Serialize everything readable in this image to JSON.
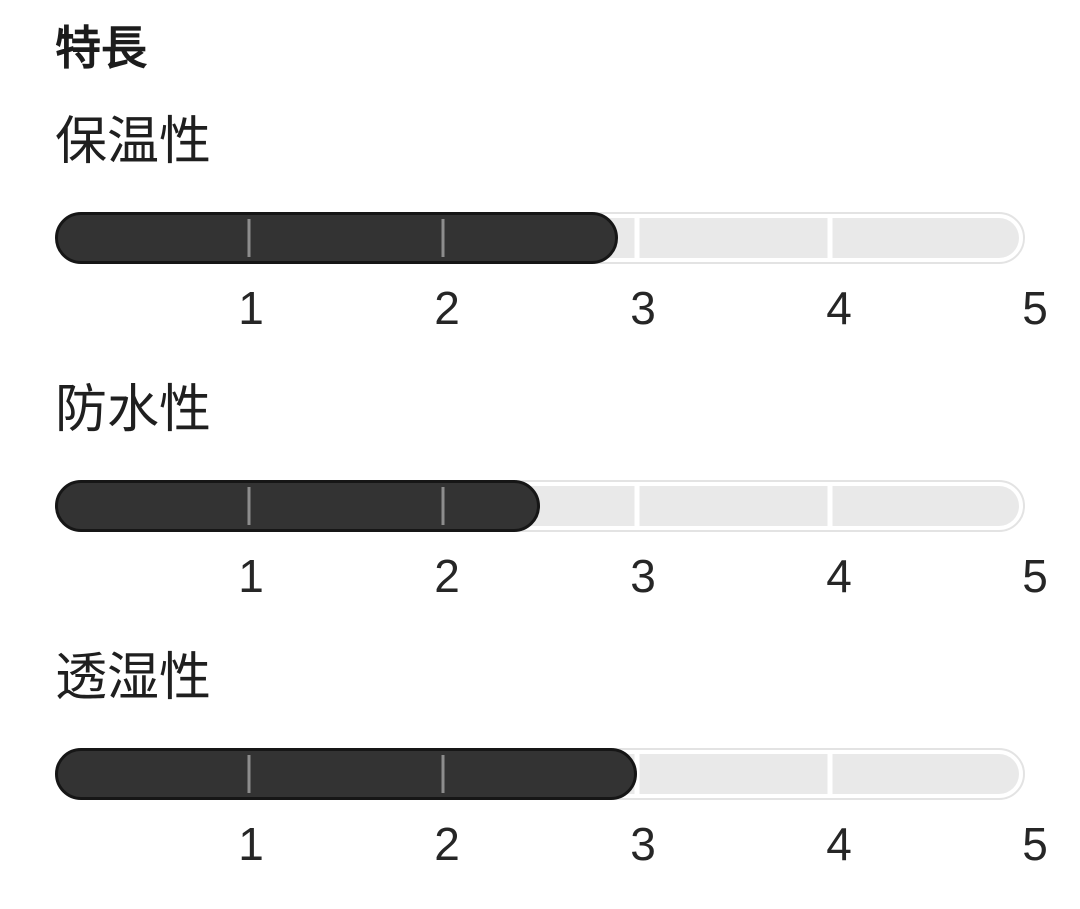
{
  "page": {
    "title": "特長"
  },
  "features": [
    {
      "label": "保温性",
      "value": 2.9
    },
    {
      "label": "防水性",
      "value": 2.5
    },
    {
      "label": "透湿性",
      "value": 3.0
    }
  ],
  "chart_data": {
    "type": "bar",
    "orientation": "horizontal",
    "title": "特長",
    "categories": [
      "保温性",
      "防水性",
      "透湿性"
    ],
    "values": [
      2.9,
      2.5,
      3.0
    ],
    "value_range": [
      0,
      5
    ],
    "tick_labels": [
      "1",
      "2",
      "3",
      "4",
      "5"
    ],
    "grid": "segment dividers at each integer",
    "colors": {
      "fill": "#333333",
      "fill_border": "#161616",
      "track": "#e9e9e9",
      "track_border": "#e3e3e3",
      "divider": "#ffffff",
      "tick_in_fill": "#8d8d8d",
      "text": "#1f1f1f",
      "background": "#ffffff"
    }
  }
}
